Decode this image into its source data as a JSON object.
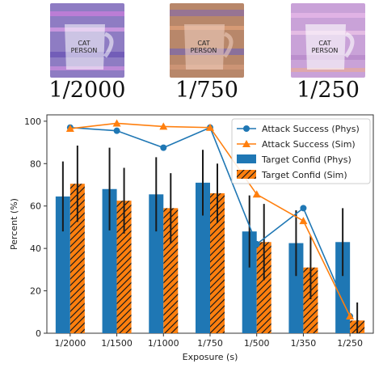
{
  "thumbnails": [
    {
      "label": "1/2000",
      "text": "CAT PERSON",
      "tint": "#8e7cc3"
    },
    {
      "label": "1/750",
      "text": "CAT PERSON",
      "tint": "#b8876a"
    },
    {
      "label": "1/250",
      "text": "CAT PERSON",
      "tint": "#c9a2d8"
    }
  ],
  "chart_data": {
    "type": "bar",
    "xlabel": "Exposure (s)",
    "ylabel": "Percent (%)",
    "ylim": [
      0,
      103
    ],
    "yticks": [
      0,
      20,
      40,
      60,
      80,
      100
    ],
    "categories": [
      "1/2000",
      "1/1500",
      "1/1000",
      "1/750",
      "1/500",
      "1/350",
      "1/250"
    ],
    "bars": [
      {
        "name": "Target Confid (Phys)",
        "color": "#1f77b4",
        "hatch": false,
        "values": [
          64.5,
          68,
          65.5,
          71,
          48,
          42.5,
          43
        ],
        "err": [
          16.5,
          19.5,
          17.5,
          15.5,
          17,
          15.5,
          16
        ]
      },
      {
        "name": "Target Confid (Sim)",
        "color": "#ff7f0e",
        "hatch": true,
        "values": [
          70.5,
          62.5,
          59,
          66,
          43,
          31,
          6
        ],
        "err": [
          18,
          15.5,
          16.5,
          14,
          18,
          15,
          8.5
        ]
      }
    ],
    "lines": [
      {
        "name": "Attack Success (Phys)",
        "color": "#1f77b4",
        "marker": "circle",
        "values": [
          97,
          95.5,
          87.5,
          97,
          42,
          59,
          8
        ]
      },
      {
        "name": "Attack Success (Sim)",
        "color": "#ff7f0e",
        "marker": "triangle",
        "values": [
          96.5,
          99,
          97.5,
          97,
          65.5,
          53,
          8
        ]
      }
    ],
    "legend": "top-right",
    "grid": false
  }
}
